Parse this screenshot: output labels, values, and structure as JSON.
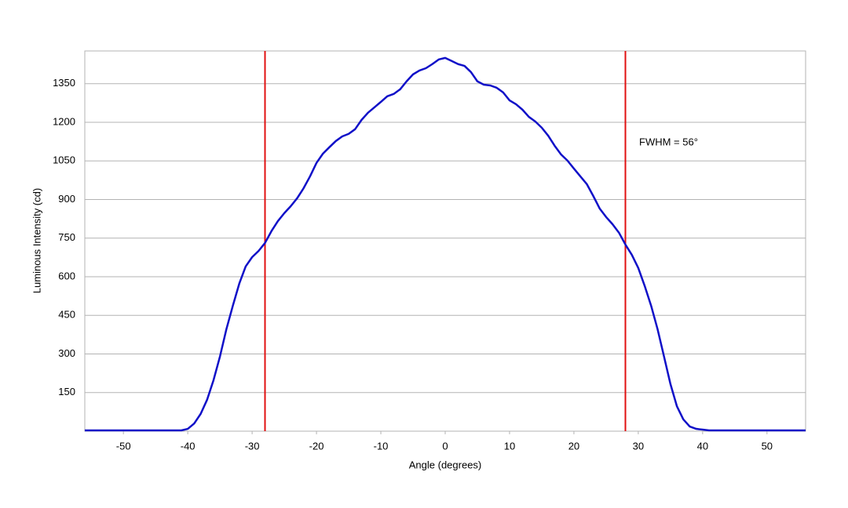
{
  "chart_data": {
    "type": "line",
    "xlabel": "Angle (degrees)",
    "ylabel": "Luminous Intensity (cd)",
    "annotation": "FWHM = 56°",
    "x": [
      -56,
      -55,
      -54,
      -53,
      -52,
      -51,
      -50,
      -49,
      -48,
      -47,
      -46,
      -45,
      -44,
      -43,
      -42,
      -41,
      -40,
      -39,
      -38,
      -37,
      -36,
      -35,
      -34,
      -33,
      -32,
      -31,
      -30,
      -29,
      -28,
      -27,
      -26,
      -25,
      -24,
      -23,
      -22,
      -21,
      -20,
      -19,
      -18,
      -17,
      -16,
      -15,
      -14,
      -13,
      -12,
      -11,
      -10,
      -9,
      -8,
      -7,
      -6,
      -5,
      -4,
      -3,
      -2,
      -1,
      0,
      1,
      2,
      3,
      4,
      5,
      6,
      7,
      8,
      9,
      10,
      11,
      12,
      13,
      14,
      15,
      16,
      17,
      18,
      19,
      20,
      21,
      22,
      23,
      24,
      25,
      26,
      27,
      28,
      29,
      30,
      31,
      32,
      33,
      34,
      35,
      36,
      37,
      38,
      39,
      40,
      41,
      42,
      43,
      44,
      45,
      46,
      47,
      48,
      49,
      50,
      51,
      52,
      53,
      54,
      55,
      56
    ],
    "series": [
      {
        "color": "#1010c8",
        "values": [
          3,
          3,
          3,
          3,
          3,
          3,
          3,
          3,
          3,
          3,
          3,
          3,
          3,
          3,
          3,
          3,
          9,
          30,
          67,
          122,
          198,
          290,
          396,
          487,
          573,
          640,
          676,
          700,
          731,
          777,
          816,
          847,
          874,
          905,
          944,
          990,
          1042,
          1078,
          1103,
          1127,
          1145,
          1155,
          1173,
          1209,
          1237,
          1258,
          1279,
          1301,
          1310,
          1328,
          1359,
          1386,
          1401,
          1410,
          1426,
          1444,
          1450,
          1438,
          1426,
          1419,
          1395,
          1359,
          1346,
          1343,
          1334,
          1316,
          1285,
          1270,
          1249,
          1221,
          1203,
          1179,
          1148,
          1109,
          1075,
          1051,
          1020,
          990,
          960,
          914,
          865,
          832,
          804,
          771,
          725,
          685,
          634,
          564,
          487,
          396,
          290,
          183,
          97,
          46,
          18,
          9,
          6,
          3,
          3,
          3,
          3,
          3,
          3,
          3,
          3,
          3,
          3,
          3,
          3,
          3,
          3,
          3,
          3
        ]
      }
    ],
    "vlines": [
      -28,
      28
    ],
    "vline_color": "#e01010",
    "xlim": [
      -56,
      56
    ],
    "ylim": [
      0,
      1477
    ],
    "xticks": [
      -50,
      -40,
      -30,
      -20,
      -10,
      0,
      10,
      20,
      30,
      40,
      50
    ],
    "yticks": [
      150,
      300,
      450,
      600,
      750,
      900,
      1050,
      1200,
      1350
    ],
    "grid": true
  }
}
